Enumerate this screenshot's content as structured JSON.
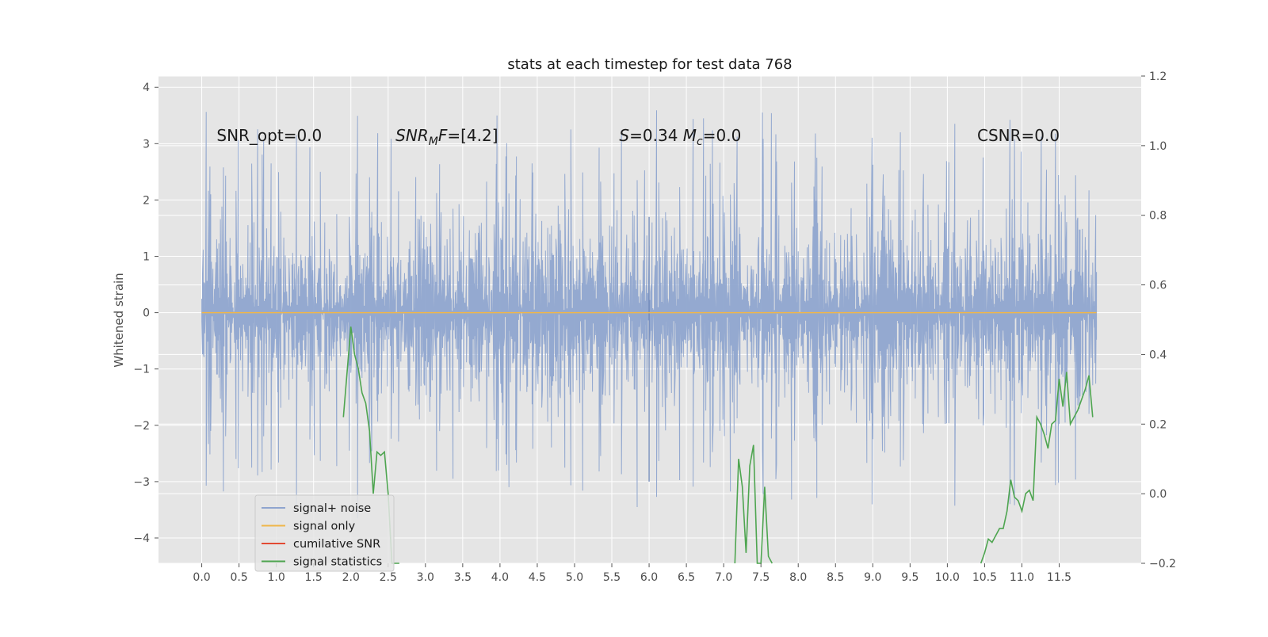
{
  "chart_data": {
    "type": "line",
    "title": "stats at each timestep for test data 768",
    "ylabel": "Whitened strain",
    "xlim": [
      -0.58,
      12.6
    ],
    "ylim": [
      -4.45,
      4.2
    ],
    "y2lim": [
      -0.2,
      1.2
    ],
    "x_ticks": [
      0.0,
      0.5,
      1.0,
      1.5,
      2.0,
      2.5,
      3.0,
      3.5,
      4.0,
      4.5,
      5.0,
      5.5,
      6.0,
      6.5,
      7.0,
      7.5,
      8.0,
      8.5,
      9.0,
      9.5,
      10.0,
      10.5,
      11.0,
      11.5
    ],
    "x_tick_labels": [
      "0.0",
      "0.5",
      "1.0",
      "1.5",
      "2.0",
      "2.5",
      "3.0",
      "3.5",
      "4.0",
      "4.5",
      "5.0",
      "5.5",
      "6.0",
      "6.5",
      "7.0",
      "7.5",
      "8.0",
      "8.5",
      "9.0",
      "9.5",
      "10.0",
      "10.5",
      "11.0",
      "11.5"
    ],
    "y_ticks": [
      -4,
      -3,
      -2,
      -1,
      0,
      1,
      2,
      3,
      4
    ],
    "y_tick_labels": [
      "−4",
      "−3",
      "−2",
      "−1",
      "0",
      "1",
      "2",
      "3",
      "4"
    ],
    "y2_ticks": [
      -0.2,
      0.0,
      0.2,
      0.4,
      0.6,
      0.8,
      1.0,
      1.2
    ],
    "y2_tick_labels": [
      "−0.2",
      "0.0",
      "0.2",
      "0.4",
      "0.6",
      "0.8",
      "1.0",
      "1.2"
    ],
    "grid": true,
    "legend_position": "lower-left",
    "series": [
      {
        "name": "signal+ noise",
        "axis": "left",
        "color": "#8fa5cf",
        "kind": "noise",
        "x_range": [
          0.0,
          12.0
        ],
        "samples": 1200,
        "typical_envelope": [
          -1.8,
          1.8
        ],
        "extremes": [
          -4.1,
          3.85
        ],
        "spike_x": 6.0,
        "spike_range": [
          -3.0,
          1.7
        ]
      },
      {
        "name": "signal only",
        "axis": "left",
        "color": "#f0b64a",
        "x": [
          0.0,
          12.0
        ],
        "y": [
          0.0,
          0.0
        ]
      },
      {
        "name": "cumilative SNR",
        "axis": "right",
        "color": "#e24a33",
        "x": [],
        "y": []
      },
      {
        "name": "signal statistics",
        "axis": "right",
        "color": "#4ea550",
        "x": [
          1.9,
          2.0,
          2.05,
          2.1,
          2.15,
          2.2,
          2.25,
          2.3,
          2.35,
          2.4,
          2.45,
          2.5,
          2.55,
          2.6,
          2.65,
          7.15,
          7.2,
          7.25,
          7.3,
          7.35,
          7.4,
          7.45,
          7.5,
          7.55,
          7.6,
          7.65,
          10.45,
          10.5,
          10.55,
          10.6,
          10.65,
          10.7,
          10.75,
          10.8,
          10.85,
          10.9,
          10.95,
          11.0,
          11.05,
          11.1,
          11.15,
          11.2,
          11.25,
          11.3,
          11.35,
          11.4,
          11.45,
          11.5,
          11.55,
          11.6,
          11.65,
          11.7,
          11.75,
          11.8,
          11.85,
          11.9,
          11.95
        ],
        "y": [
          0.22,
          0.48,
          0.4,
          0.36,
          0.29,
          0.26,
          0.18,
          0.0,
          0.12,
          0.11,
          0.12,
          0.0,
          -0.2,
          -0.21,
          -0.22,
          -0.2,
          0.1,
          0.02,
          -0.17,
          0.08,
          0.14,
          -0.2,
          -0.22,
          0.02,
          -0.18,
          -0.22,
          -0.2,
          -0.17,
          -0.13,
          -0.14,
          -0.12,
          -0.1,
          -0.1,
          -0.05,
          0.04,
          -0.01,
          -0.02,
          -0.05,
          0.0,
          0.01,
          -0.02,
          0.22,
          0.2,
          0.17,
          0.13,
          0.2,
          0.21,
          0.33,
          0.25,
          0.35,
          0.2,
          0.22,
          0.24,
          0.27,
          0.3,
          0.34,
          0.22
        ]
      }
    ],
    "annotations": [
      {
        "id": "snr_opt",
        "x": 0.2,
        "y": 3.05,
        "segments": [
          {
            "t": "SNR_opt=0.0"
          }
        ]
      },
      {
        "id": "snr_mf",
        "x": 2.6,
        "y": 3.05,
        "segments": [
          {
            "t": "SNR",
            "italic": true
          },
          {
            "t": "M",
            "italic": true,
            "sub": true
          },
          {
            "t": "F",
            "italic": true
          },
          {
            "t": "=[4.2]"
          }
        ]
      },
      {
        "id": "s_mc",
        "x": 5.6,
        "y": 3.05,
        "segments": [
          {
            "t": "S",
            "italic": true
          },
          {
            "t": "=0.34  "
          },
          {
            "t": "M",
            "italic": true
          },
          {
            "t": "c",
            "italic": true,
            "sub": true
          },
          {
            "t": "=0.0"
          }
        ]
      },
      {
        "id": "csnr",
        "x": 10.4,
        "y": 3.05,
        "segments": [
          {
            "t": "CSNR=0.0"
          }
        ]
      }
    ]
  }
}
